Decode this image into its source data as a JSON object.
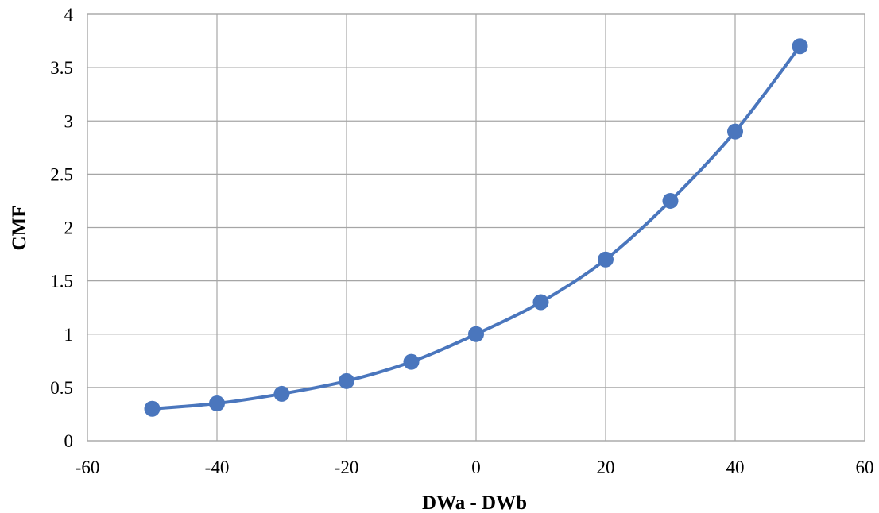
{
  "chart_data": {
    "type": "line",
    "title": "",
    "xlabel": "DWa - DWb",
    "ylabel": "CMF",
    "xlim": [
      -60,
      60
    ],
    "ylim": [
      0,
      4
    ],
    "xticks": [
      -60,
      -40,
      -20,
      0,
      20,
      40,
      60
    ],
    "yticks": [
      0,
      0.5,
      1,
      1.5,
      2,
      2.5,
      3,
      3.5,
      4
    ],
    "xtick_labels": [
      "-60",
      "-40",
      "-20",
      "0",
      "20",
      "40",
      "60"
    ],
    "ytick_labels": [
      "0",
      "0.5",
      "1",
      "1.5",
      "2",
      "2.5",
      "3",
      "3.5",
      "4"
    ],
    "grid": true,
    "smooth": true,
    "markers": "circle",
    "legend": "none",
    "colors": {
      "series": "#4a76bd",
      "grid": "#a6a6a6"
    },
    "series": [
      {
        "x": [
          -50,
          -40,
          -30,
          -20,
          -10,
          0,
          10,
          20,
          30,
          40,
          50
        ],
        "values": [
          0.3,
          0.35,
          0.44,
          0.56,
          0.74,
          1.0,
          1.3,
          1.7,
          2.25,
          2.9,
          3.7
        ]
      }
    ]
  }
}
